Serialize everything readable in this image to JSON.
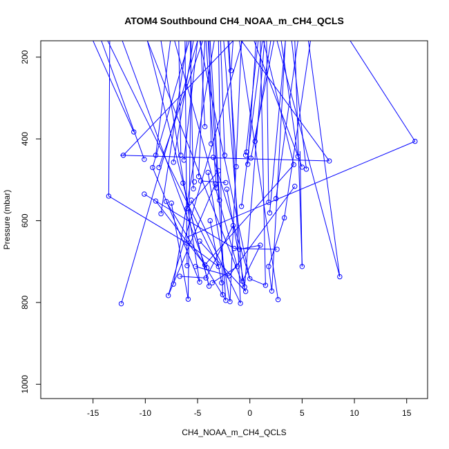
{
  "chart_data": {
    "type": "line",
    "title": "ATOM4 Southbound CH4_NOAA_m_CH4_QCLS",
    "xlabel": "CH4_NOAA_m_CH4_QCLS",
    "ylabel": "Pressure (mbar)",
    "xlim": [
      -20,
      17
    ],
    "ylim": [
      1035,
      160
    ],
    "y_reversed": true,
    "x_ticks": [
      -15,
      -10,
      -5,
      0,
      5,
      10,
      15
    ],
    "y_ticks": [
      200,
      400,
      600,
      800,
      1000
    ],
    "grid": false,
    "legend": "none",
    "color": "#0000ff",
    "points": [
      [
        -12.3,
        803
      ],
      [
        -7.3,
        755
      ],
      [
        -6.0,
        710
      ],
      [
        -4.8,
        750
      ],
      [
        -3.9,
        760
      ],
      [
        -2.3,
        795
      ],
      [
        -1.9,
        798
      ],
      [
        -0.7,
        748
      ],
      [
        -0.5,
        762
      ],
      [
        1.5,
        758
      ],
      [
        2.1,
        772
      ],
      [
        2.7,
        793
      ],
      [
        -7.8,
        783
      ],
      [
        -5.9,
        792
      ],
      [
        -4.3,
        708
      ],
      [
        -3.0,
        712
      ],
      [
        -2.6,
        781
      ],
      [
        -1.2,
        712
      ],
      [
        -0.9,
        802
      ],
      [
        -0.4,
        773
      ],
      [
        0.0,
        742
      ],
      [
        -13.5,
        540
      ],
      [
        -12.1,
        440
      ],
      [
        -11.1,
        383
      ],
      [
        -10.1,
        450
      ],
      [
        -9.3,
        470
      ],
      [
        -9.0,
        440
      ],
      [
        -8.7,
        470
      ],
      [
        -8.5,
        583
      ],
      [
        -8.0,
        553
      ],
      [
        -7.5,
        557
      ],
      [
        -7.3,
        457
      ],
      [
        -6.6,
        440
      ],
      [
        -6.4,
        508
      ],
      [
        -6.3,
        452
      ],
      [
        -6.0,
        570
      ],
      [
        -5.6,
        550
      ],
      [
        -5.4,
        522
      ],
      [
        -5.3,
        505
      ],
      [
        -4.9,
        492
      ],
      [
        -4.7,
        503
      ],
      [
        -4.3,
        370
      ],
      [
        -4.0,
        482
      ],
      [
        -3.7,
        412
      ],
      [
        -3.5,
        445
      ],
      [
        -3.3,
        510
      ],
      [
        -3.2,
        520
      ],
      [
        -3.0,
        478
      ],
      [
        -2.9,
        550
      ],
      [
        -2.4,
        440
      ],
      [
        -2.3,
        507
      ],
      [
        -2.2,
        523
      ],
      [
        -1.8,
        233
      ],
      [
        -1.3,
        468
      ],
      [
        -0.8,
        565
      ],
      [
        -0.4,
        440
      ],
      [
        -0.3,
        432
      ],
      [
        -0.2,
        462
      ],
      [
        0.1,
        447
      ],
      [
        0.5,
        406
      ],
      [
        1.8,
        555
      ],
      [
        1.9,
        581
      ],
      [
        2.5,
        546
      ],
      [
        3.3,
        593
      ],
      [
        4.2,
        463
      ],
      [
        4.3,
        516
      ],
      [
        4.6,
        443
      ],
      [
        5.0,
        469
      ],
      [
        5.4,
        474
      ],
      [
        7.6,
        454
      ],
      [
        15.8,
        406
      ],
      [
        8.6,
        737
      ],
      [
        5.0,
        712
      ],
      [
        2.6,
        670
      ],
      [
        1.8,
        712
      ],
      [
        1.0,
        660
      ],
      [
        -1.5,
        668
      ],
      [
        -1.0,
        670
      ],
      [
        -4.1,
        715
      ],
      [
        -4.8,
        650
      ],
      [
        -5.2,
        712
      ],
      [
        -6.0,
        655
      ],
      [
        -6.7,
        736
      ],
      [
        -10.1,
        535
      ],
      [
        -9.0,
        552
      ],
      [
        -3.8,
        600
      ],
      [
        -1.6,
        612
      ],
      [
        -4.2,
        740
      ],
      [
        -3.6,
        752
      ],
      [
        -2.7,
        752
      ],
      [
        -2.0,
        735
      ]
    ],
    "segments": [
      [
        [
          -12.3,
          803
        ],
        [
          -5.0,
          160
        ]
      ],
      [
        [
          -7.3,
          755
        ],
        [
          -3.4,
          160
        ]
      ],
      [
        [
          -6.0,
          710
        ],
        [
          -6.2,
          160
        ]
      ],
      [
        [
          -4.8,
          750
        ],
        [
          -8.5,
          160
        ]
      ],
      [
        [
          -3.9,
          760
        ],
        [
          -9.8,
          160
        ]
      ],
      [
        [
          -2.3,
          795
        ],
        [
          -4.0,
          160
        ]
      ],
      [
        [
          -1.9,
          798
        ],
        [
          -0.8,
          160
        ]
      ],
      [
        [
          -0.7,
          748
        ],
        [
          -2.5,
          160
        ]
      ],
      [
        [
          -0.5,
          762
        ],
        [
          1.4,
          160
        ]
      ],
      [
        [
          1.5,
          758
        ],
        [
          1.0,
          160
        ]
      ],
      [
        [
          2.1,
          772
        ],
        [
          3.4,
          160
        ]
      ],
      [
        [
          2.7,
          793
        ],
        [
          -1.0,
          160
        ]
      ],
      [
        [
          -7.8,
          783
        ],
        [
          -0.7,
          160
        ]
      ],
      [
        [
          -5.9,
          792
        ],
        [
          -5.6,
          160
        ]
      ],
      [
        [
          -4.3,
          708
        ],
        [
          -12.2,
          160
        ]
      ],
      [
        [
          -3.0,
          712
        ],
        [
          -13.6,
          160
        ]
      ],
      [
        [
          -2.6,
          781
        ],
        [
          -3.0,
          160
        ]
      ],
      [
        [
          -1.2,
          712
        ],
        [
          -7.2,
          160
        ]
      ],
      [
        [
          -0.9,
          802
        ],
        [
          -2.0,
          160
        ]
      ],
      [
        [
          -0.4,
          773
        ],
        [
          -9.8,
          160
        ]
      ],
      [
        [
          0.0,
          742
        ],
        [
          -4.8,
          160
        ]
      ],
      [
        [
          -13.5,
          540
        ],
        [
          -13.4,
          160
        ]
      ],
      [
        [
          -12.1,
          440
        ],
        [
          -1.6,
          160
        ]
      ],
      [
        [
          -11.1,
          383
        ],
        [
          -15.0,
          160
        ]
      ],
      [
        [
          -10.1,
          450
        ],
        [
          -14.2,
          160
        ]
      ],
      [
        [
          -9.3,
          470
        ],
        [
          -5.8,
          160
        ]
      ],
      [
        [
          -9.0,
          440
        ],
        [
          -7.6,
          160
        ]
      ],
      [
        [
          -8.7,
          470
        ],
        [
          -4.5,
          160
        ]
      ],
      [
        [
          -8.5,
          583
        ],
        [
          -6.0,
          160
        ]
      ],
      [
        [
          -7.3,
          457
        ],
        [
          -5.4,
          160
        ]
      ],
      [
        [
          -6.6,
          440
        ],
        [
          -6.8,
          160
        ]
      ],
      [
        [
          -6.3,
          452
        ],
        [
          -5.0,
          160
        ]
      ],
      [
        [
          -5.4,
          522
        ],
        [
          -5.7,
          160
        ]
      ],
      [
        [
          -4.9,
          492
        ],
        [
          -4.3,
          160
        ]
      ],
      [
        [
          -4.3,
          370
        ],
        [
          -4.7,
          160
        ]
      ],
      [
        [
          -3.7,
          412
        ],
        [
          -3.9,
          160
        ]
      ],
      [
        [
          -3.2,
          520
        ],
        [
          -4.2,
          160
        ]
      ],
      [
        [
          -2.9,
          550
        ],
        [
          -3.8,
          160
        ]
      ],
      [
        [
          -2.4,
          440
        ],
        [
          -2.8,
          160
        ]
      ],
      [
        [
          -1.8,
          233
        ],
        [
          -1.6,
          160
        ]
      ],
      [
        [
          -1.3,
          468
        ],
        [
          -2.1,
          160
        ]
      ],
      [
        [
          -0.8,
          565
        ],
        [
          1.2,
          160
        ]
      ],
      [
        [
          -0.4,
          440
        ],
        [
          0.8,
          160
        ]
      ],
      [
        [
          -0.2,
          462
        ],
        [
          0.6,
          160
        ]
      ],
      [
        [
          0.1,
          447
        ],
        [
          2.3,
          160
        ]
      ],
      [
        [
          0.5,
          406
        ],
        [
          2.0,
          160
        ]
      ],
      [
        [
          1.8,
          555
        ],
        [
          1.6,
          160
        ]
      ],
      [
        [
          1.9,
          581
        ],
        [
          3.4,
          160
        ]
      ],
      [
        [
          2.5,
          546
        ],
        [
          4.6,
          160
        ]
      ],
      [
        [
          3.3,
          593
        ],
        [
          5.8,
          160
        ]
      ],
      [
        [
          4.2,
          463
        ],
        [
          1.3,
          160
        ]
      ],
      [
        [
          4.6,
          443
        ],
        [
          3.0,
          160
        ]
      ],
      [
        [
          5.0,
          469
        ],
        [
          0.4,
          160
        ]
      ],
      [
        [
          5.4,
          474
        ],
        [
          4.0,
          160
        ]
      ],
      [
        [
          7.6,
          454
        ],
        [
          -0.8,
          160
        ]
      ],
      [
        [
          7.6,
          454
        ],
        [
          -12.4,
          440
        ]
      ],
      [
        [
          15.8,
          406
        ],
        [
          9.6,
          160
        ]
      ],
      [
        [
          15.8,
          406
        ],
        [
          -6.0,
          640
        ]
      ],
      [
        [
          8.6,
          737
        ],
        [
          5.6,
          160
        ]
      ],
      [
        [
          8.6,
          737
        ],
        [
          2.6,
          160
        ]
      ],
      [
        [
          5.0,
          712
        ],
        [
          4.3,
          160
        ]
      ],
      [
        [
          5.0,
          712
        ],
        [
          4.8,
          430
        ]
      ],
      [
        [
          -13.5,
          540
        ],
        [
          -6.0,
          655
        ]
      ],
      [
        [
          -10.1,
          535
        ],
        [
          -1.5,
          668
        ]
      ],
      [
        [
          -9.0,
          552
        ],
        [
          -4.1,
          715
        ]
      ],
      [
        [
          -3.8,
          600
        ],
        [
          -2.7,
          752
        ]
      ],
      [
        [
          -1.6,
          612
        ],
        [
          -4.2,
          740
        ]
      ],
      [
        [
          1.0,
          660
        ],
        [
          -1.0,
          670
        ]
      ],
      [
        [
          2.6,
          670
        ],
        [
          -1.5,
          668
        ]
      ],
      [
        [
          1.8,
          712
        ],
        [
          3.3,
          593
        ]
      ],
      [
        [
          -4.8,
          650
        ],
        [
          -0.4,
          773
        ]
      ],
      [
        [
          -5.2,
          712
        ],
        [
          -2.0,
          735
        ]
      ],
      [
        [
          -6.0,
          655
        ],
        [
          -3.0,
          712
        ]
      ],
      [
        [
          -6.7,
          736
        ],
        [
          -4.2,
          740
        ]
      ],
      [
        [
          -3.6,
          752
        ],
        [
          -1.2,
          712
        ]
      ],
      [
        [
          1.5,
          758
        ],
        [
          0.0,
          742
        ]
      ],
      [
        [
          2.1,
          772
        ],
        [
          1.8,
          712
        ]
      ],
      [
        [
          -0.7,
          748
        ],
        [
          1.0,
          660
        ]
      ],
      [
        [
          -2.0,
          735
        ],
        [
          4.3,
          516
        ]
      ],
      [
        [
          -4.3,
          708
        ],
        [
          4.2,
          463
        ]
      ],
      [
        [
          -7.8,
          783
        ],
        [
          -3.3,
          510
        ]
      ],
      [
        [
          -5.9,
          792
        ],
        [
          -7.5,
          557
        ]
      ],
      [
        [
          -2.3,
          795
        ],
        [
          -8.0,
          553
        ]
      ],
      [
        [
          -0.9,
          802
        ],
        [
          -5.6,
          550
        ]
      ],
      [
        [
          -4.8,
          750
        ],
        [
          -9.3,
          470
        ]
      ],
      [
        [
          -3.9,
          760
        ],
        [
          -6.4,
          508
        ]
      ],
      [
        [
          -1.9,
          798
        ],
        [
          -4.0,
          482
        ]
      ],
      [
        [
          0.0,
          742
        ],
        [
          -3.5,
          445
        ]
      ],
      [
        [
          -0.5,
          762
        ],
        [
          -2.2,
          523
        ]
      ],
      [
        [
          -6.0,
          570
        ],
        [
          -3.0,
          478
        ]
      ],
      [
        [
          -4.7,
          503
        ],
        [
          -2.3,
          507
        ]
      ]
    ]
  }
}
